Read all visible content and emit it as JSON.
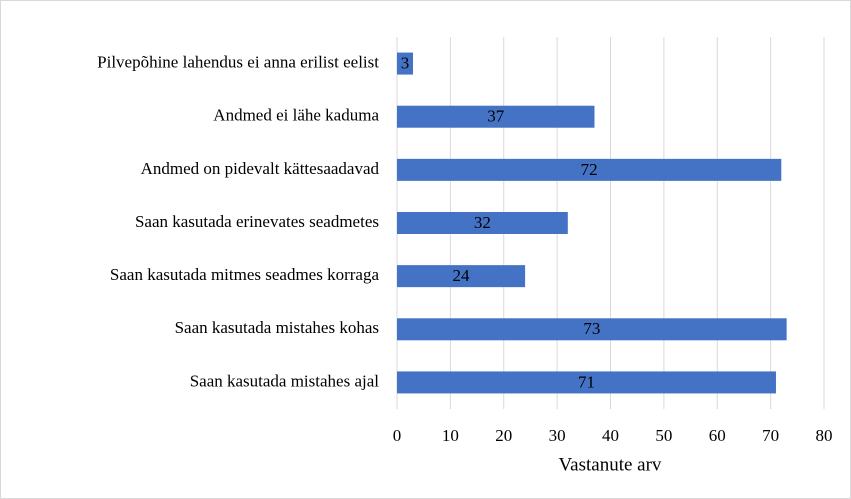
{
  "chart_data": {
    "type": "bar",
    "orientation": "horizontal",
    "x_label": "Vastanute arv",
    "categories": [
      "Pilvepõhine lahendus ei anna erilist eelist",
      "Andmed ei lähe kaduma",
      "Andmed on pidevalt kättesaadavad",
      "Saan kasutada erinevates seadmetes",
      "Saan kasutada mitmes seadmes korraga",
      "Saan kasutada mistahes kohas",
      "Saan kasutada mistahes ajal"
    ],
    "values": [
      3,
      37,
      72,
      32,
      24,
      73,
      71
    ],
    "color": "#4472c4",
    "xlim": [
      0,
      80
    ],
    "xticks": [
      0,
      10,
      20,
      30,
      40,
      50,
      60,
      70,
      80
    ],
    "grid": true
  }
}
